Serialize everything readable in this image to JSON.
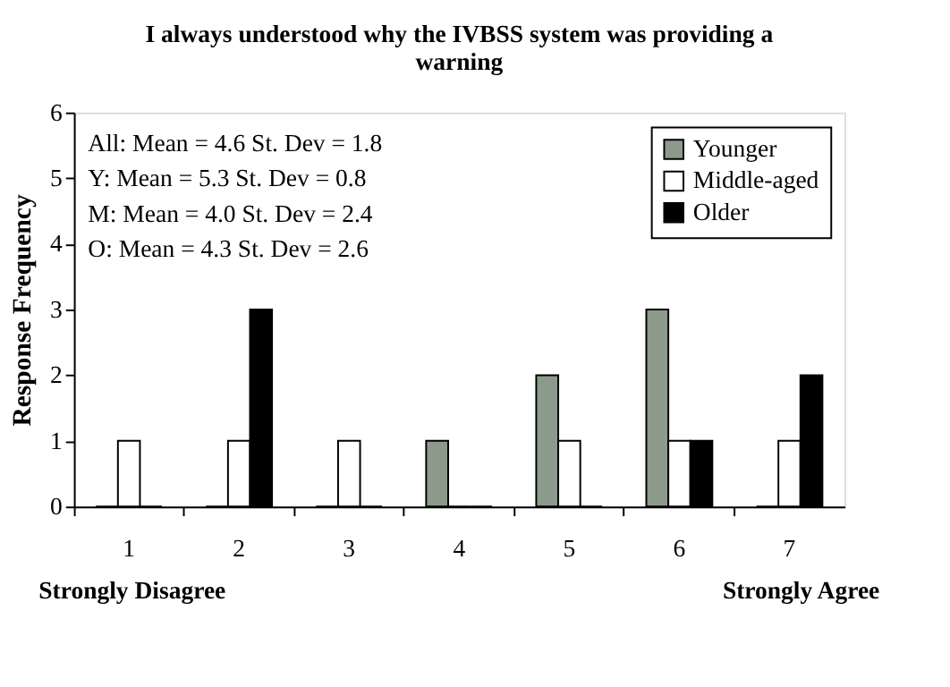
{
  "chart_data": {
    "type": "bar",
    "title": "I always understood why the IVBSS system was providing a warning",
    "ylabel": "Response Frequency",
    "categories": [
      "1",
      "2",
      "3",
      "4",
      "5",
      "6",
      "7"
    ],
    "series": [
      {
        "name": "Younger",
        "color": "#8c9a8c",
        "values": [
          0,
          0,
          0,
          1,
          2,
          3,
          0
        ]
      },
      {
        "name": "Middle-aged",
        "color": "#ffffff",
        "values": [
          1,
          1,
          1,
          0,
          1,
          1,
          1
        ]
      },
      {
        "name": "Older",
        "color": "#000000",
        "values": [
          0,
          3,
          0,
          0,
          0,
          1,
          2
        ]
      }
    ],
    "ylim": [
      0,
      6
    ],
    "yticks": [
      0,
      1,
      2,
      3,
      4,
      5,
      6
    ],
    "grid": false,
    "legend": "top right",
    "annotations": [
      "All: Mean = 4.6 St. Dev = 1.8",
      "Y:   Mean = 5.3 St. Dev = 0.8",
      "M:  Mean = 4.0 St. Dev = 2.4",
      "O:   Mean = 4.3 St. Dev = 2.6",
      "Strongly Disagree",
      "Strongly Agree"
    ]
  }
}
